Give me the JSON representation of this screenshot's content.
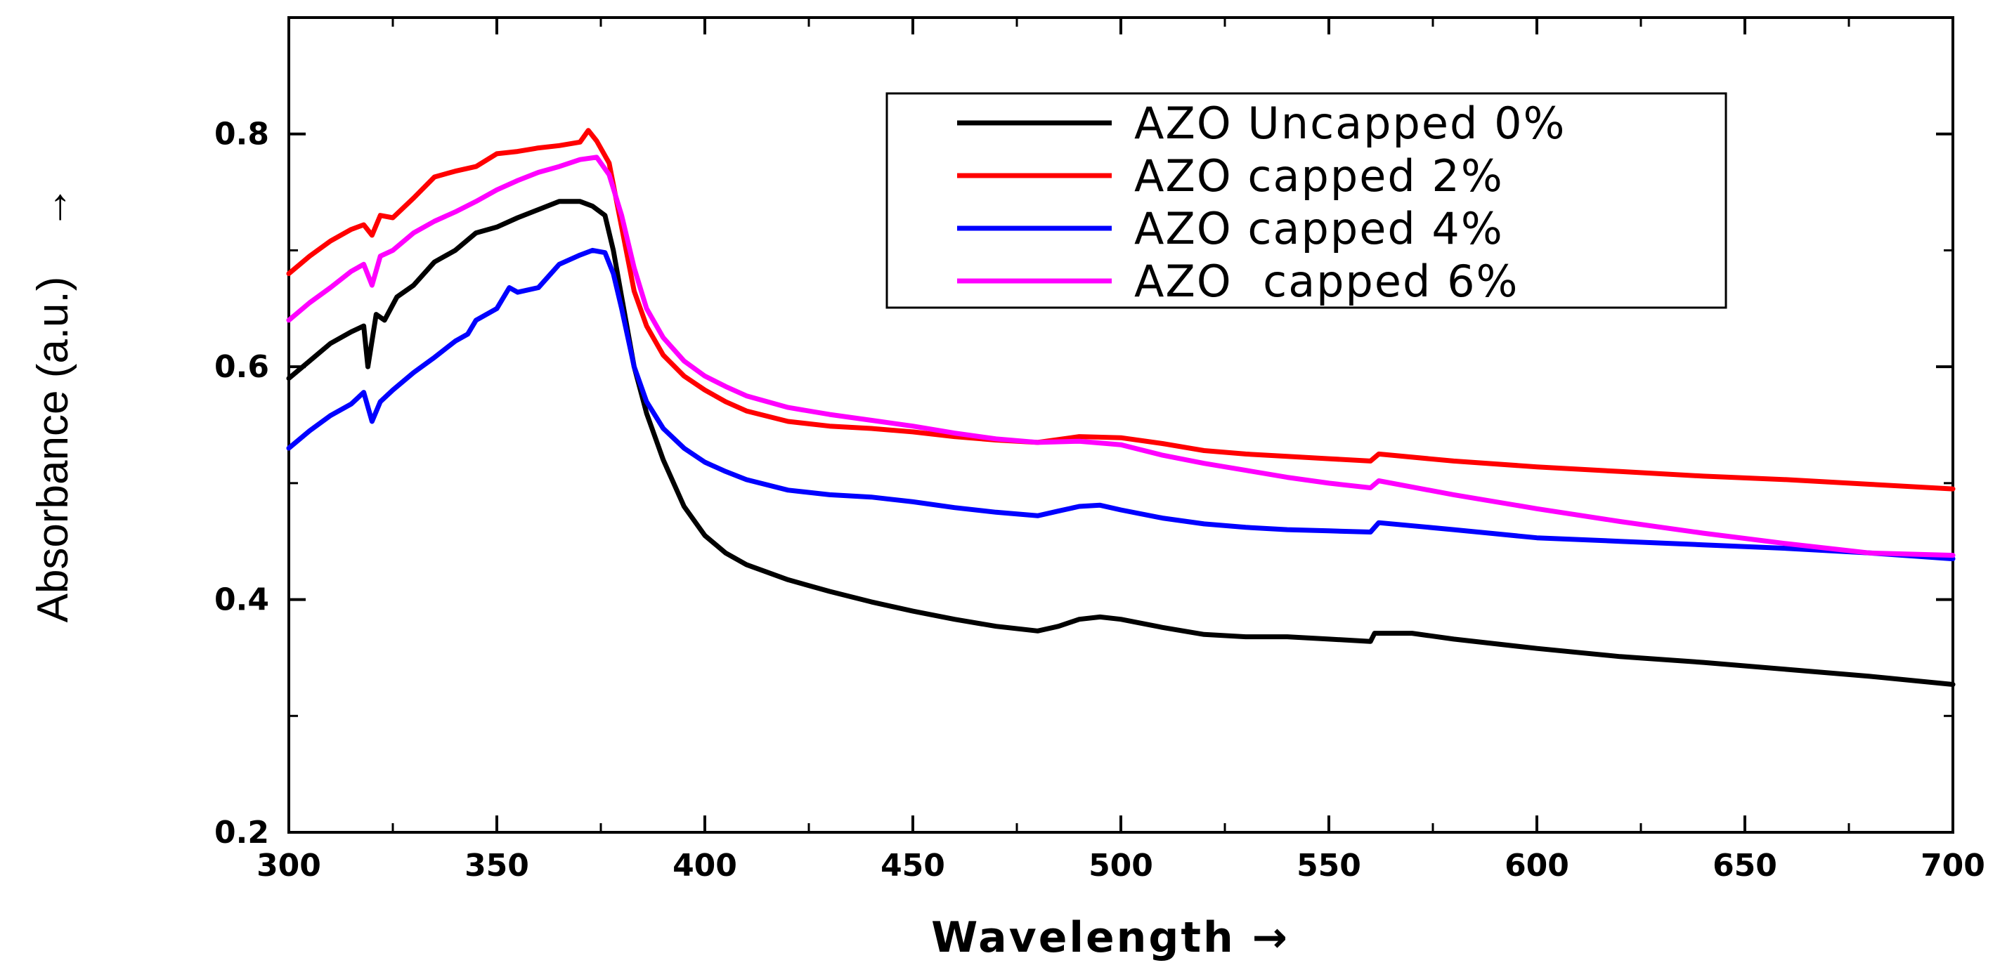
{
  "chart_data": {
    "type": "line",
    "title": "",
    "xlabel": "Wavelength →",
    "ylabel": "Absorbance (a.u.)",
    "ylabel_arrow": "→",
    "xlim": [
      300,
      700
    ],
    "ylim": [
      0.2,
      0.9
    ],
    "xticks": [
      300,
      350,
      400,
      450,
      500,
      550,
      600,
      650,
      700
    ],
    "xtick_labels": [
      "300",
      "350",
      "400",
      "450",
      "500",
      "550",
      "600",
      "650",
      "700"
    ],
    "yticks": [
      0.2,
      0.4,
      0.6,
      0.8
    ],
    "ytick_labels": [
      "0.2",
      "0.4",
      "0.6",
      "0.8"
    ],
    "grid": false,
    "legend_position": "top-right",
    "series": [
      {
        "name": "AZO Uncapped 0%",
        "color": "#000000",
        "points": [
          [
            300,
            0.59
          ],
          [
            305,
            0.605
          ],
          [
            310,
            0.62
          ],
          [
            315,
            0.63
          ],
          [
            318,
            0.635
          ],
          [
            319,
            0.6
          ],
          [
            321,
            0.645
          ],
          [
            323,
            0.64
          ],
          [
            326,
            0.66
          ],
          [
            330,
            0.67
          ],
          [
            335,
            0.69
          ],
          [
            340,
            0.7
          ],
          [
            345,
            0.715
          ],
          [
            350,
            0.72
          ],
          [
            355,
            0.728
          ],
          [
            360,
            0.735
          ],
          [
            365,
            0.742
          ],
          [
            370,
            0.742
          ],
          [
            373,
            0.738
          ],
          [
            376,
            0.73
          ],
          [
            378,
            0.7
          ],
          [
            380,
            0.66
          ],
          [
            383,
            0.6
          ],
          [
            386,
            0.56
          ],
          [
            390,
            0.52
          ],
          [
            395,
            0.48
          ],
          [
            400,
            0.455
          ],
          [
            405,
            0.44
          ],
          [
            410,
            0.43
          ],
          [
            420,
            0.417
          ],
          [
            430,
            0.407
          ],
          [
            440,
            0.398
          ],
          [
            450,
            0.39
          ],
          [
            460,
            0.383
          ],
          [
            470,
            0.377
          ],
          [
            480,
            0.373
          ],
          [
            485,
            0.377
          ],
          [
            490,
            0.383
          ],
          [
            495,
            0.385
          ],
          [
            500,
            0.383
          ],
          [
            510,
            0.376
          ],
          [
            520,
            0.37
          ],
          [
            530,
            0.368
          ],
          [
            540,
            0.368
          ],
          [
            550,
            0.366
          ],
          [
            560,
            0.364
          ],
          [
            561,
            0.371
          ],
          [
            570,
            0.371
          ],
          [
            580,
            0.366
          ],
          [
            600,
            0.358
          ],
          [
            620,
            0.351
          ],
          [
            640,
            0.346
          ],
          [
            660,
            0.34
          ],
          [
            680,
            0.334
          ],
          [
            700,
            0.327
          ]
        ]
      },
      {
        "name": "AZO capped 2%",
        "color": "#ff0000",
        "points": [
          [
            300,
            0.68
          ],
          [
            305,
            0.695
          ],
          [
            310,
            0.708
          ],
          [
            315,
            0.718
          ],
          [
            318,
            0.722
          ],
          [
            320,
            0.713
          ],
          [
            322,
            0.73
          ],
          [
            325,
            0.728
          ],
          [
            330,
            0.745
          ],
          [
            335,
            0.763
          ],
          [
            340,
            0.768
          ],
          [
            345,
            0.772
          ],
          [
            350,
            0.783
          ],
          [
            355,
            0.785
          ],
          [
            360,
            0.788
          ],
          [
            365,
            0.79
          ],
          [
            370,
            0.793
          ],
          [
            372,
            0.803
          ],
          [
            374,
            0.794
          ],
          [
            377,
            0.775
          ],
          [
            380,
            0.72
          ],
          [
            383,
            0.665
          ],
          [
            386,
            0.635
          ],
          [
            390,
            0.61
          ],
          [
            395,
            0.592
          ],
          [
            400,
            0.58
          ],
          [
            405,
            0.57
          ],
          [
            410,
            0.562
          ],
          [
            420,
            0.553
          ],
          [
            430,
            0.549
          ],
          [
            440,
            0.547
          ],
          [
            450,
            0.544
          ],
          [
            460,
            0.54
          ],
          [
            470,
            0.537
          ],
          [
            480,
            0.535
          ],
          [
            490,
            0.54
          ],
          [
            500,
            0.539
          ],
          [
            510,
            0.534
          ],
          [
            520,
            0.528
          ],
          [
            530,
            0.525
          ],
          [
            540,
            0.523
          ],
          [
            550,
            0.521
          ],
          [
            560,
            0.519
          ],
          [
            562,
            0.525
          ],
          [
            580,
            0.519
          ],
          [
            600,
            0.514
          ],
          [
            620,
            0.51
          ],
          [
            640,
            0.506
          ],
          [
            660,
            0.503
          ],
          [
            680,
            0.499
          ],
          [
            700,
            0.495
          ]
        ]
      },
      {
        "name": "AZO capped 4%",
        "color": "#0000ff",
        "points": [
          [
            300,
            0.53
          ],
          [
            305,
            0.545
          ],
          [
            310,
            0.558
          ],
          [
            315,
            0.568
          ],
          [
            318,
            0.578
          ],
          [
            320,
            0.553
          ],
          [
            322,
            0.57
          ],
          [
            325,
            0.58
          ],
          [
            330,
            0.595
          ],
          [
            335,
            0.608
          ],
          [
            340,
            0.622
          ],
          [
            343,
            0.628
          ],
          [
            345,
            0.64
          ],
          [
            350,
            0.65
          ],
          [
            353,
            0.668
          ],
          [
            355,
            0.664
          ],
          [
            360,
            0.668
          ],
          [
            365,
            0.688
          ],
          [
            370,
            0.696
          ],
          [
            373,
            0.7
          ],
          [
            376,
            0.698
          ],
          [
            378,
            0.68
          ],
          [
            380,
            0.65
          ],
          [
            383,
            0.6
          ],
          [
            386,
            0.57
          ],
          [
            390,
            0.547
          ],
          [
            395,
            0.53
          ],
          [
            400,
            0.518
          ],
          [
            405,
            0.51
          ],
          [
            410,
            0.503
          ],
          [
            420,
            0.494
          ],
          [
            430,
            0.49
          ],
          [
            440,
            0.488
          ],
          [
            450,
            0.484
          ],
          [
            460,
            0.479
          ],
          [
            470,
            0.475
          ],
          [
            480,
            0.472
          ],
          [
            485,
            0.476
          ],
          [
            490,
            0.48
          ],
          [
            495,
            0.481
          ],
          [
            500,
            0.477
          ],
          [
            510,
            0.47
          ],
          [
            520,
            0.465
          ],
          [
            530,
            0.462
          ],
          [
            540,
            0.46
          ],
          [
            550,
            0.459
          ],
          [
            560,
            0.458
          ],
          [
            562,
            0.466
          ],
          [
            580,
            0.46
          ],
          [
            600,
            0.453
          ],
          [
            620,
            0.45
          ],
          [
            640,
            0.447
          ],
          [
            660,
            0.444
          ],
          [
            680,
            0.44
          ],
          [
            700,
            0.435
          ]
        ]
      },
      {
        "name": "AZO  capped 6%",
        "color": "#ff00ff",
        "points": [
          [
            300,
            0.64
          ],
          [
            305,
            0.655
          ],
          [
            310,
            0.668
          ],
          [
            315,
            0.682
          ],
          [
            318,
            0.688
          ],
          [
            320,
            0.67
          ],
          [
            322,
            0.695
          ],
          [
            325,
            0.7
          ],
          [
            330,
            0.715
          ],
          [
            335,
            0.725
          ],
          [
            340,
            0.733
          ],
          [
            345,
            0.742
          ],
          [
            350,
            0.752
          ],
          [
            355,
            0.76
          ],
          [
            360,
            0.767
          ],
          [
            365,
            0.772
          ],
          [
            370,
            0.778
          ],
          [
            374,
            0.78
          ],
          [
            377,
            0.765
          ],
          [
            380,
            0.73
          ],
          [
            383,
            0.685
          ],
          [
            386,
            0.65
          ],
          [
            390,
            0.625
          ],
          [
            395,
            0.605
          ],
          [
            400,
            0.592
          ],
          [
            405,
            0.583
          ],
          [
            410,
            0.575
          ],
          [
            420,
            0.565
          ],
          [
            430,
            0.559
          ],
          [
            440,
            0.554
          ],
          [
            450,
            0.549
          ],
          [
            460,
            0.543
          ],
          [
            470,
            0.538
          ],
          [
            480,
            0.535
          ],
          [
            490,
            0.536
          ],
          [
            500,
            0.533
          ],
          [
            510,
            0.524
          ],
          [
            520,
            0.517
          ],
          [
            530,
            0.511
          ],
          [
            540,
            0.505
          ],
          [
            550,
            0.5
          ],
          [
            560,
            0.496
          ],
          [
            562,
            0.502
          ],
          [
            580,
            0.49
          ],
          [
            600,
            0.478
          ],
          [
            620,
            0.467
          ],
          [
            640,
            0.457
          ],
          [
            660,
            0.448
          ],
          [
            680,
            0.44
          ],
          [
            700,
            0.438
          ]
        ]
      }
    ]
  }
}
